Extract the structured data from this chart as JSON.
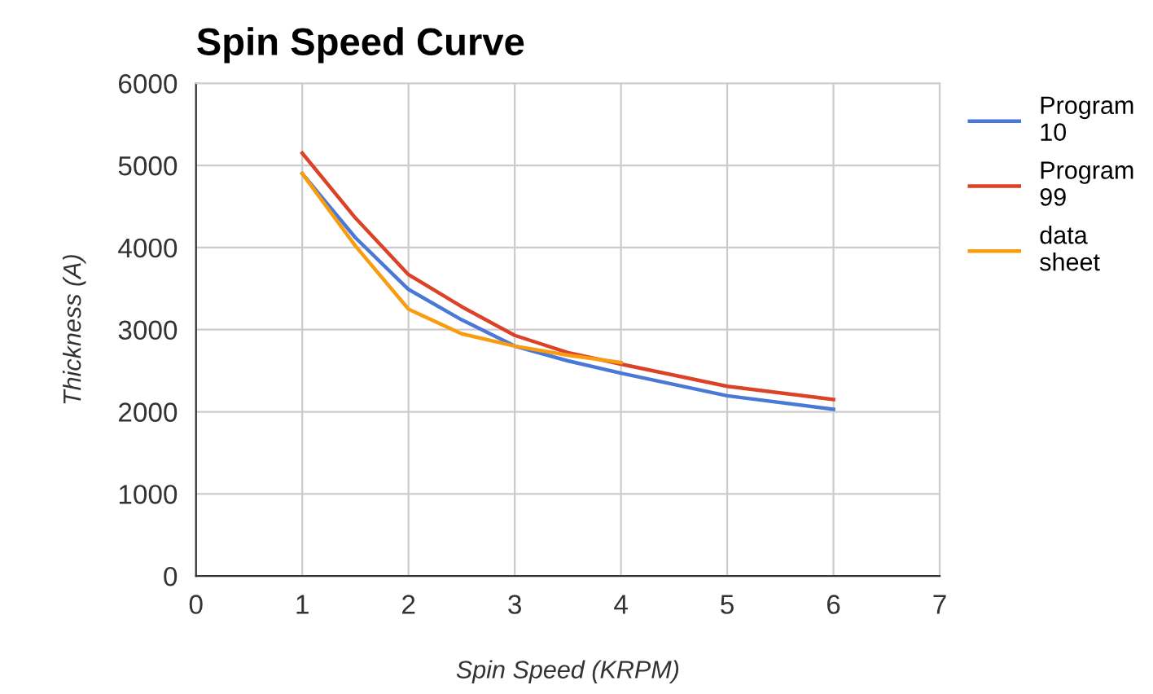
{
  "chart_data": {
    "type": "line",
    "title": "Spin Speed Curve",
    "xlabel": "Spin Speed (KRPM)",
    "ylabel": "Thickness (A)",
    "xlim": [
      0,
      7
    ],
    "xticks": [
      0,
      1,
      2,
      3,
      4,
      5,
      6,
      7
    ],
    "ylim": [
      0,
      6000
    ],
    "yticks": [
      0,
      1000,
      2000,
      3000,
      4000,
      5000,
      6000
    ],
    "grid": true,
    "legend": "right",
    "line_style": "solid",
    "marker": "none",
    "series": [
      {
        "name": "Program 10",
        "color": "#4a78d6",
        "x": [
          1,
          1.5,
          2,
          2.5,
          3,
          3.5,
          4,
          5,
          6
        ],
        "values": [
          4900,
          4120,
          3490,
          3120,
          2800,
          2620,
          2470,
          2195,
          2030
        ]
      },
      {
        "name": "Program 99",
        "color": "#dc4227",
        "x": [
          1,
          1.5,
          2,
          2.5,
          3,
          3.5,
          4,
          5,
          6
        ],
        "values": [
          5150,
          4360,
          3670,
          3280,
          2930,
          2720,
          2580,
          2310,
          2150
        ]
      },
      {
        "name": "data sheet",
        "color": "#f99c10",
        "x": [
          1,
          1.5,
          2,
          2.5,
          3,
          3.5,
          4
        ],
        "values": [
          4900,
          4020,
          3250,
          2950,
          2800,
          2690,
          2600
        ]
      }
    ]
  }
}
